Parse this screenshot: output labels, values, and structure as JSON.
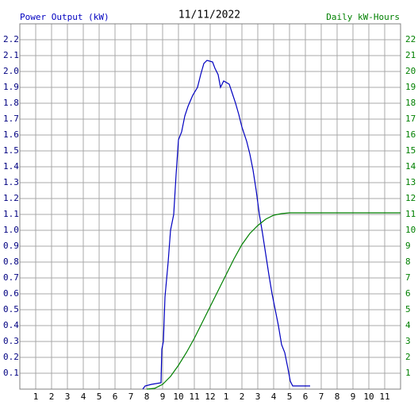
{
  "chart_data": {
    "type": "line",
    "title": "11/11/2022",
    "y_label": "Power Output (kW)",
    "y2_label": "Daily kW-Hours",
    "xlim": [
      0,
      24
    ],
    "xticks": [
      1,
      2,
      3,
      4,
      5,
      6,
      7,
      8,
      9,
      10,
      11,
      12,
      {
        "value": 13,
        "label": "1"
      },
      {
        "value": 14,
        "label": "2"
      },
      {
        "value": 15,
        "label": "3"
      },
      {
        "value": 16,
        "label": "4"
      },
      {
        "value": 17,
        "label": "5"
      },
      {
        "value": 18,
        "label": "6"
      },
      {
        "value": 19,
        "label": "7"
      },
      {
        "value": 20,
        "label": "8"
      },
      {
        "value": 21,
        "label": "9"
      },
      {
        "value": 22,
        "label": "10"
      },
      {
        "value": 23,
        "label": "11"
      }
    ],
    "ylim": [
      0,
      2.3
    ],
    "yticks": [
      0.1,
      0.2,
      0.3,
      0.4,
      0.5,
      0.6,
      0.7,
      0.8,
      0.9,
      {
        "value": 1,
        "label": "1.0"
      },
      1.1,
      1.2,
      1.3,
      1.4,
      1.5,
      1.6,
      1.7,
      1.8,
      1.9,
      {
        "value": 2,
        "label": "2.0"
      },
      2.1,
      2.2
    ],
    "y2lim": [
      0,
      23
    ],
    "y2ticks": [
      1,
      2,
      3,
      4,
      5,
      6,
      7,
      8,
      9,
      10,
      11,
      12,
      13,
      14,
      15,
      16,
      17,
      18,
      19,
      20,
      21,
      22
    ],
    "grid": true,
    "series": [
      {
        "name": "Power Output (kW)",
        "color": "#0000c0",
        "axis": "y",
        "x": [
          7.75,
          7.9,
          8.3,
          8.9,
          8.95,
          9.05,
          9.15,
          9.35,
          9.5,
          9.7,
          9.85,
          10.0,
          10.2,
          10.4,
          10.6,
          10.9,
          11.2,
          11.4,
          11.6,
          11.8,
          12.15,
          12.3,
          12.5,
          12.65,
          12.85,
          13.2,
          13.4,
          13.6,
          13.8,
          14.0,
          14.3,
          14.5,
          14.7,
          14.9,
          15.1,
          15.3,
          15.5,
          15.7,
          15.9,
          16.1,
          16.3,
          16.5,
          16.7,
          16.9,
          17.05,
          17.2,
          18.3
        ],
        "values": [
          0,
          0.02,
          0.03,
          0.04,
          0.25,
          0.3,
          0.58,
          0.8,
          1.0,
          1.1,
          1.35,
          1.57,
          1.62,
          1.72,
          1.78,
          1.85,
          1.9,
          1.98,
          2.05,
          2.07,
          2.06,
          2.02,
          1.98,
          1.9,
          1.94,
          1.92,
          1.86,
          1.8,
          1.73,
          1.65,
          1.56,
          1.48,
          1.38,
          1.25,
          1.1,
          0.98,
          0.85,
          0.72,
          0.6,
          0.5,
          0.4,
          0.28,
          0.23,
          0.13,
          0.05,
          0.02,
          0.02
        ]
      },
      {
        "name": "Daily kW-Hours",
        "color": "#008000",
        "axis": "y2",
        "x": [
          8.0,
          8.5,
          9.0,
          9.5,
          10.0,
          10.5,
          11.0,
          11.5,
          12.0,
          12.5,
          13.0,
          13.5,
          14.0,
          14.5,
          15.0,
          15.5,
          16.0,
          16.5,
          17.0,
          24
        ],
        "values": [
          0,
          0.05,
          0.3,
          0.8,
          1.5,
          2.3,
          3.2,
          4.2,
          5.2,
          6.2,
          7.2,
          8.2,
          9.1,
          9.8,
          10.3,
          10.7,
          10.95,
          11.05,
          11.1,
          11.1
        ]
      }
    ]
  }
}
